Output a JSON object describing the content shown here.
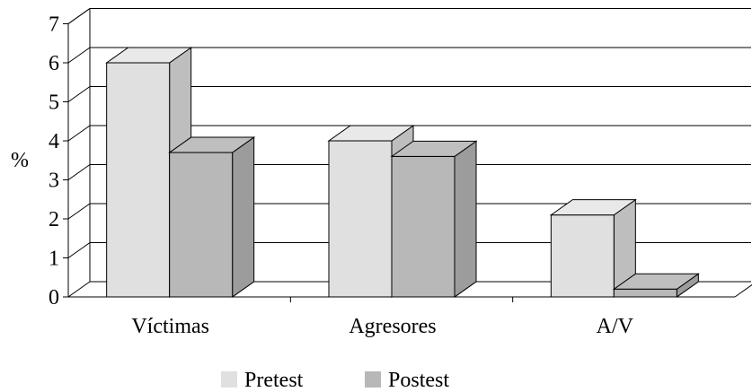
{
  "chart_data": {
    "type": "bar",
    "style": "3d-clustered-column",
    "categories": [
      "Víctimas",
      "Agresores",
      "A/V"
    ],
    "series": [
      {
        "name": "Pretest",
        "values": [
          6.0,
          4.0,
          2.1
        ],
        "color": "#e0e0e0"
      },
      {
        "name": "Postest",
        "values": [
          3.7,
          3.6,
          0.2
        ],
        "color": "#b8b8b8"
      }
    ],
    "ylabel": "%",
    "xlabel": "",
    "ylim": [
      0,
      7
    ],
    "yticks": [
      "0",
      "1",
      "2",
      "3",
      "4",
      "5",
      "6",
      "7"
    ],
    "grid": true,
    "legend": "bottom"
  }
}
